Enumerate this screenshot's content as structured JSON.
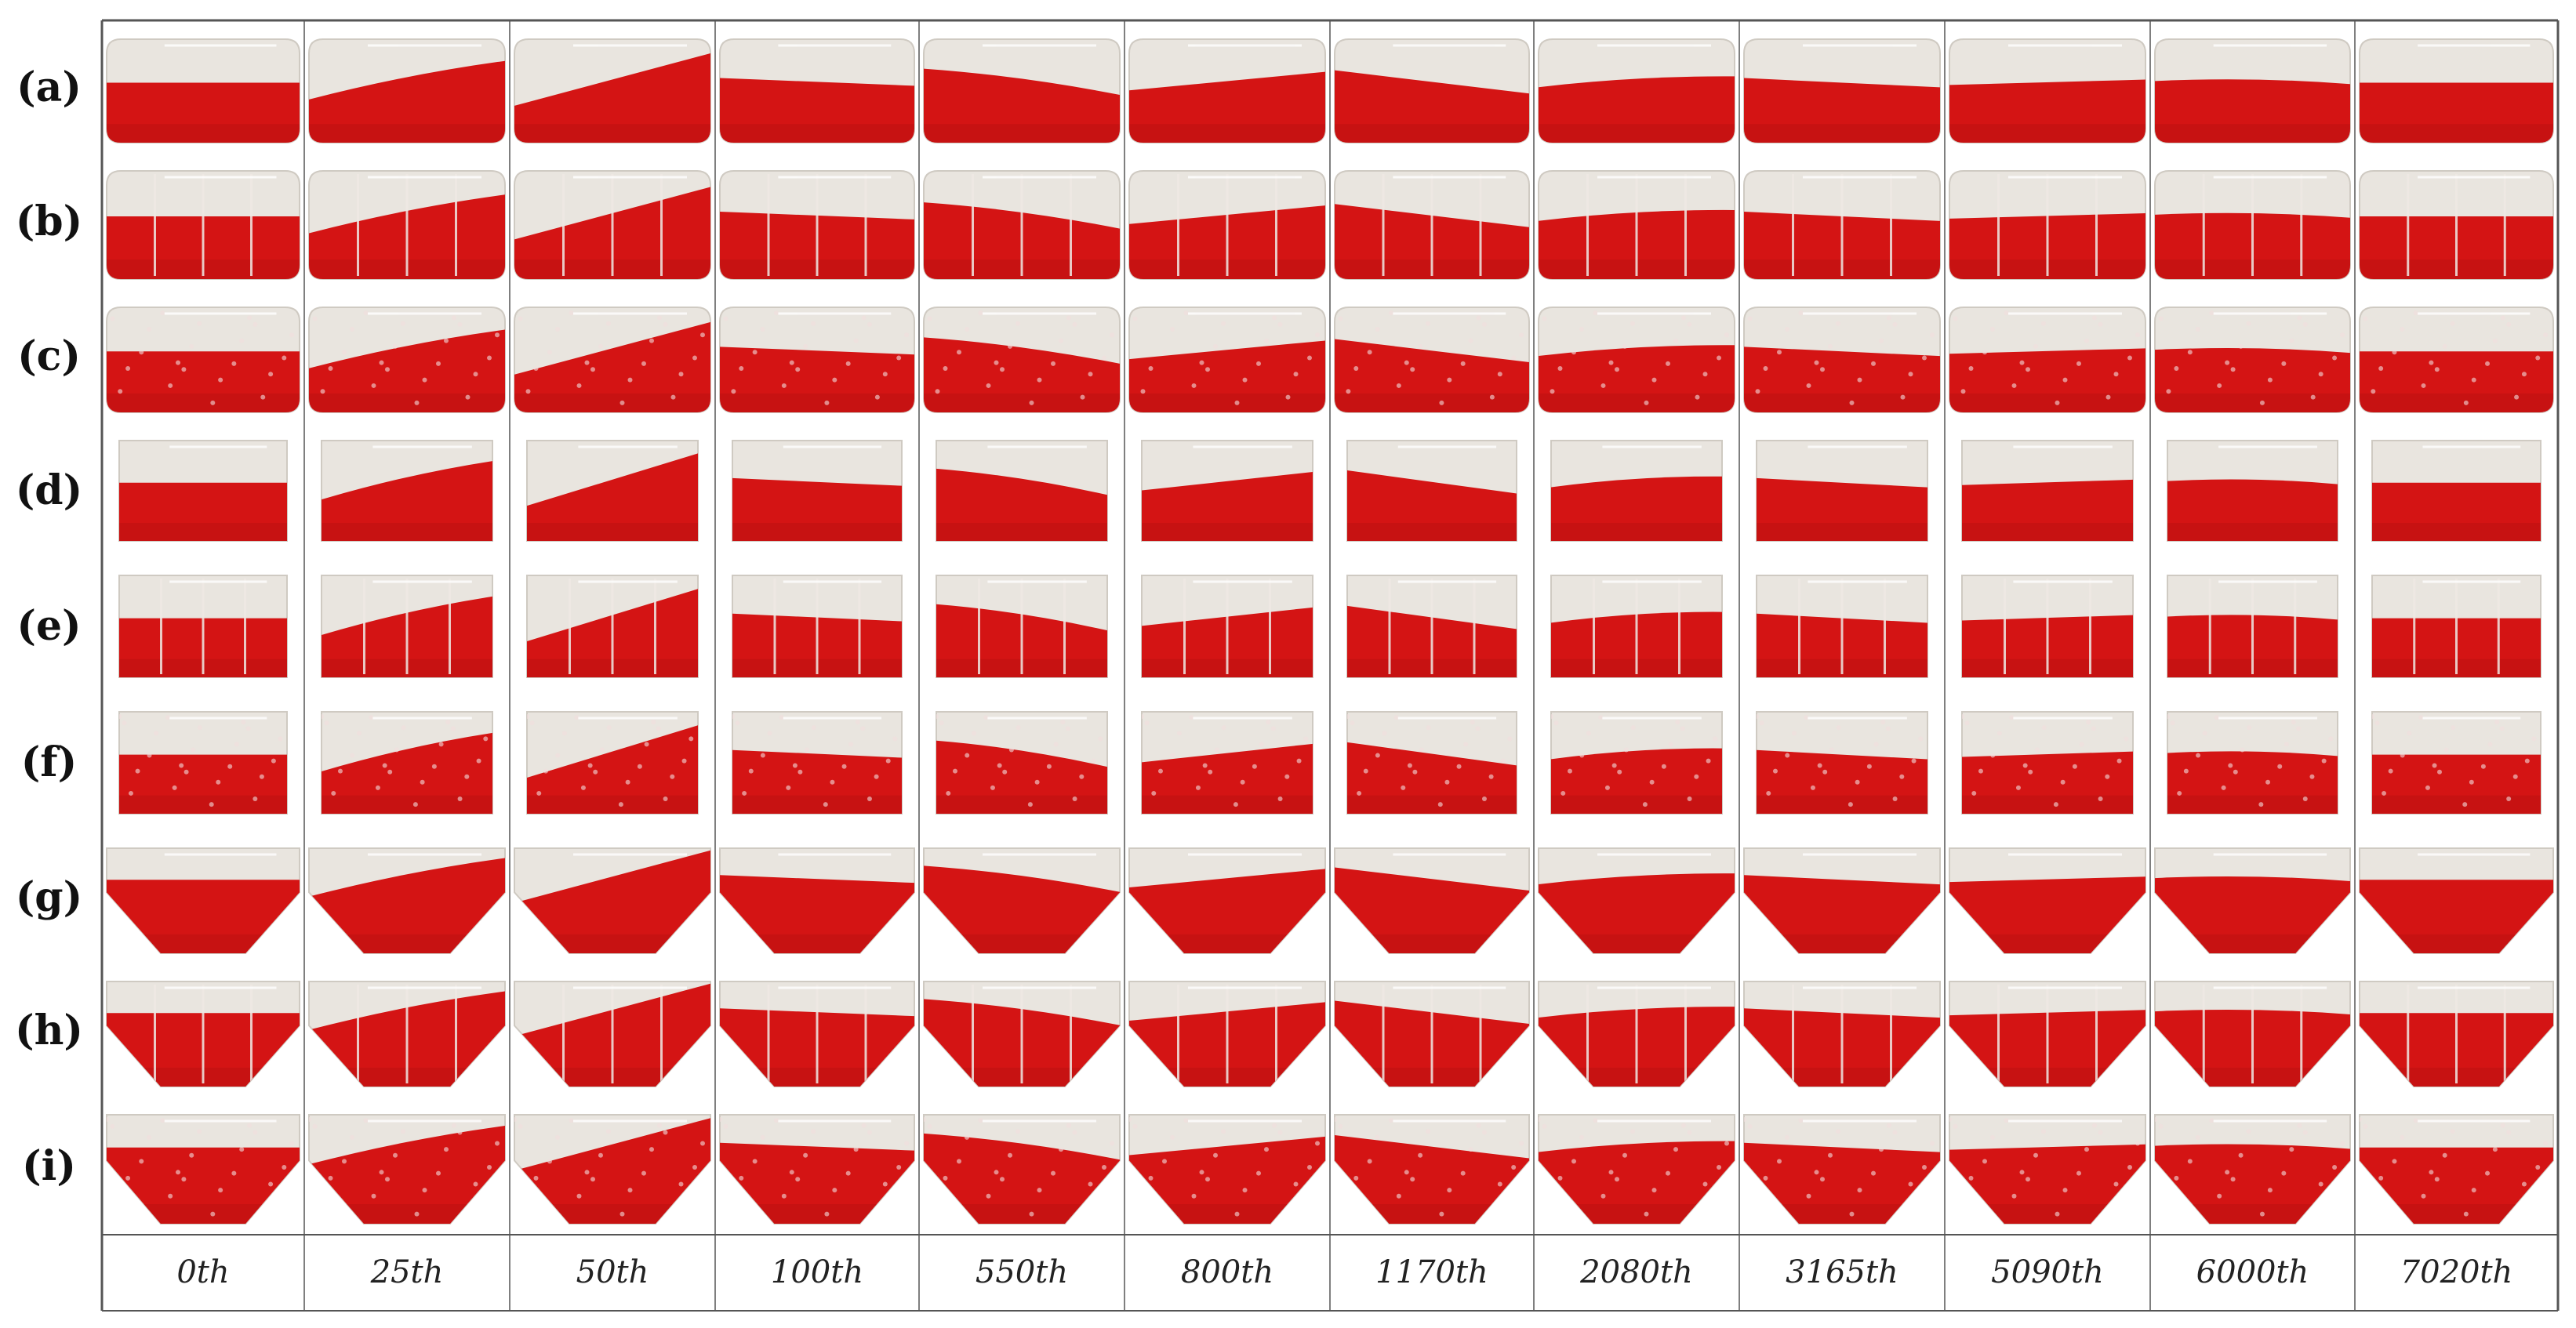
{
  "rows": [
    {
      "label": "(a)",
      "shape": "cylinder",
      "baffle": "none"
    },
    {
      "label": "(b)",
      "shape": "cylinder",
      "baffle": "vertical"
    },
    {
      "label": "(c)",
      "shape": "cylinder",
      "baffle": "foam"
    },
    {
      "label": "(d)",
      "shape": "rectangle",
      "baffle": "none"
    },
    {
      "label": "(e)",
      "shape": "rectangle",
      "baffle": "vertical"
    },
    {
      "label": "(f)",
      "shape": "rectangle",
      "baffle": "foam"
    },
    {
      "label": "(g)",
      "shape": "trapezoid",
      "baffle": "none"
    },
    {
      "label": "(h)",
      "shape": "trapezoid",
      "baffle": "vertical"
    },
    {
      "label": "(i)",
      "shape": "trapezoid",
      "baffle": "foam"
    }
  ],
  "columns": [
    "0th",
    "25th",
    "50th",
    "100th",
    "550th",
    "800th",
    "1170th",
    "2080th",
    "3165th",
    "5090th",
    "6000th",
    "7020th"
  ],
  "colors": {
    "liquid": "#d41414",
    "liquid_dark": "#b00d0d",
    "air": "#e9e5df",
    "frame": "#cfcac2",
    "grid": "#555555",
    "foam": "#f2dede"
  }
}
